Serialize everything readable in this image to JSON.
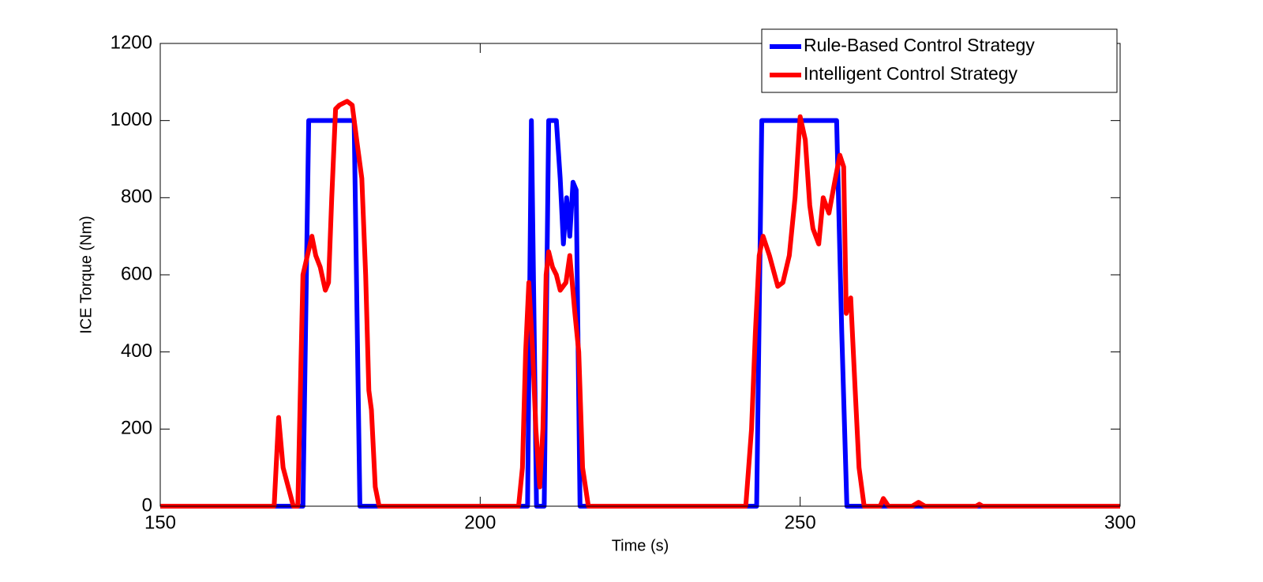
{
  "chart_data": {
    "type": "line",
    "x_label": "Time (s)",
    "y_label": "ICE Torque (Nm)",
    "xlim": [
      150,
      300
    ],
    "xticks": [
      150,
      200,
      250,
      300
    ],
    "ylim": [
      0,
      1200
    ],
    "yticks": [
      0,
      200,
      400,
      600,
      800,
      1000,
      1200
    ],
    "grid": false,
    "legend": "upper right",
    "series": [
      {
        "name": "Rule-Based Control Strategy",
        "color": "#0000ff",
        "x": [
          150,
          172.3,
          173.2,
          180.3,
          181.2,
          207.4,
          208,
          208.8,
          210,
          210.7,
          211.9,
          212.5,
          213,
          213.5,
          214,
          214.5,
          215,
          215.6,
          243.2,
          244,
          255.7,
          256.5,
          257.3,
          300
        ],
        "values": [
          0,
          0,
          1000,
          1000,
          0,
          0,
          1000,
          0,
          0,
          1000,
          1000,
          850,
          680,
          800,
          700,
          840,
          820,
          0,
          0,
          1000,
          1000,
          450,
          0,
          0
        ]
      },
      {
        "name": "Intelligent Control Strategy",
        "color": "#ff0000",
        "x": [
          150,
          167.8,
          168.5,
          169.2,
          170.8,
          171.5,
          172,
          172.3,
          173,
          173.7,
          174.3,
          175,
          175.8,
          176.3,
          176.8,
          177.4,
          178,
          179.2,
          180,
          180.7,
          181.5,
          182.1,
          182.6,
          183,
          183.6,
          184.2,
          206,
          206.6,
          207.1,
          207.6,
          208.2,
          208.7,
          209.3,
          209.8,
          210.3,
          210.7,
          211.3,
          211.9,
          212.5,
          213.4,
          214,
          214.8,
          215.4,
          216,
          216.9,
          241.5,
          242.4,
          243,
          243.6,
          244.2,
          245.2,
          246.5,
          247.3,
          248.3,
          249.2,
          250,
          250.8,
          251.5,
          252,
          252.9,
          253.6,
          254.5,
          255.5,
          256.2,
          256.8,
          257.2,
          257.9,
          258.6,
          259.2,
          260,
          262.5,
          263,
          263.8,
          267.5,
          268.5,
          269.5,
          277.5,
          278,
          278.5,
          300
        ],
        "values": [
          0,
          0,
          230,
          100,
          0,
          0,
          380,
          600,
          650,
          700,
          650,
          620,
          560,
          580,
          800,
          1030,
          1040,
          1050,
          1040,
          950,
          850,
          600,
          300,
          250,
          50,
          0,
          0,
          100,
          400,
          580,
          400,
          200,
          50,
          200,
          600,
          660,
          620,
          600,
          560,
          580,
          650,
          500,
          400,
          100,
          0,
          0,
          200,
          450,
          650,
          700,
          650,
          570,
          580,
          650,
          800,
          1010,
          950,
          780,
          720,
          680,
          800,
          760,
          850,
          910,
          880,
          500,
          540,
          300,
          100,
          0,
          0,
          20,
          0,
          0,
          10,
          0,
          0,
          5,
          0,
          0
        ]
      }
    ]
  }
}
